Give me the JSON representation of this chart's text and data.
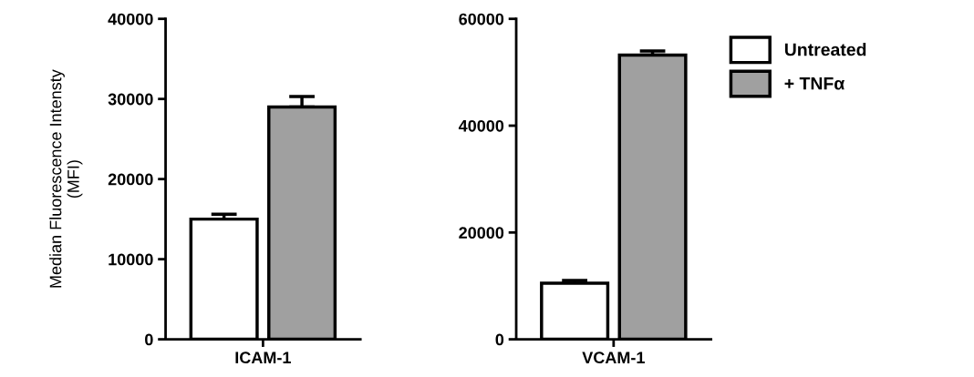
{
  "chart_data": [
    {
      "type": "bar",
      "ylabel": "Median Fluorescence Intensty\n(MFI)",
      "categories": [
        "ICAM-1"
      ],
      "ylim": [
        0,
        40000
      ],
      "yticks": [
        0,
        10000,
        20000,
        30000,
        40000
      ],
      "grid": false,
      "series": [
        {
          "color": "#ffffff",
          "values": [
            15000
          ],
          "errors": [
            [
              15000,
              15600
            ]
          ]
        },
        {
          "color": "#a0a0a0",
          "values": [
            29000
          ],
          "errors": [
            [
              29000,
              30300
            ]
          ]
        }
      ]
    },
    {
      "type": "bar",
      "categories": [
        "VCAM-1"
      ],
      "ylim": [
        0,
        60000
      ],
      "yticks": [
        0,
        20000,
        40000,
        60000
      ],
      "grid": false,
      "legend": "right",
      "series": [
        {
          "name": "Untreated",
          "color": "#ffffff",
          "values": [
            10500
          ],
          "errors": [
            [
              10500,
              11000
            ]
          ]
        },
        {
          "name": "+ TNFα",
          "color": "#a0a0a0",
          "values": [
            53200
          ],
          "errors": [
            [
              53200,
              54000
            ]
          ]
        }
      ]
    }
  ]
}
